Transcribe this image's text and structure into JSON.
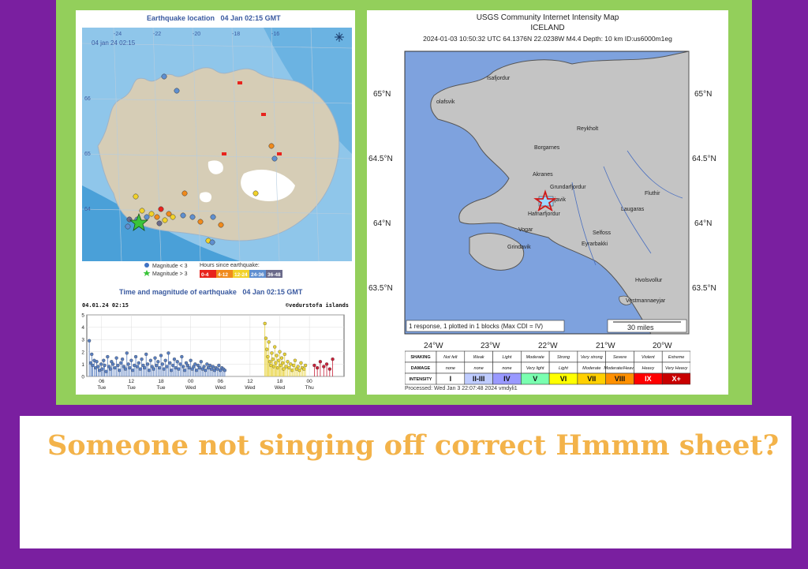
{
  "caption": "Someone not singing off correct Hmmm sheet?",
  "left": {
    "map_title": "Earthquake location",
    "map_time": "04 Jan 02:15 GMT",
    "map_stamp": "04 jan 24 02:15",
    "lon_labels": [
      "-24",
      "-22",
      "-20",
      "-18",
      "-16"
    ],
    "lat_labels": [
      "66",
      "65",
      "64"
    ],
    "legend_mag_lt": "Magnitude < 3",
    "legend_mag_gt": "Magnitude > 3",
    "legend_hours_title": "Hours since earthquake:",
    "hours_bins": [
      {
        "label": "0-4",
        "color": "#e8231d"
      },
      {
        "label": "4-12",
        "color": "#f08a1c"
      },
      {
        "label": "12-24",
        "color": "#f2d22a"
      },
      {
        "label": "24-36",
        "color": "#5f8fd0"
      },
      {
        "label": "36-48",
        "color": "#6a6a8a"
      }
    ],
    "chart_title": "Time and magnitude of earthquake",
    "chart_time": "04 Jan 02:15 GMT",
    "chart_stamp": "04.01.24 02:15",
    "chart_credit": "©vedurstofa islands"
  },
  "chart_data": {
    "type": "scatter",
    "title": "Time and magnitude of earthquake",
    "x_tick_labels": [
      "06 Tue",
      "12 Tue",
      "18 Tue",
      "00 Wed",
      "06 Wed",
      "12 Wed",
      "18 Wed",
      "00 Thu"
    ],
    "y_ticks": [
      0,
      1,
      2,
      3,
      4,
      5
    ],
    "ylim": [
      0,
      5
    ],
    "series": [
      {
        "color": "#5a7fc0",
        "x": [
          0.5,
          0.8,
          1.0,
          1.2,
          1.5,
          1.8,
          2.0,
          2.3,
          2.6,
          2.9,
          3.1,
          3.4,
          3.6,
          3.9,
          4.2,
          4.5,
          4.8,
          5.0,
          5.3,
          5.7,
          6.0,
          6.3,
          6.6,
          6.9,
          7.2,
          7.5,
          7.8,
          8.1,
          8.4,
          8.7,
          9.0,
          9.3,
          9.6,
          9.9,
          10.2,
          10.5,
          10.8,
          11.1,
          11.4,
          11.7,
          12.0,
          12.3,
          12.6,
          12.9,
          13.2,
          13.5,
          13.8,
          14.1,
          14.4,
          14.7,
          15.0,
          15.3,
          15.6,
          15.9,
          16.2,
          16.5,
          16.8,
          17.1,
          17.4,
          17.7,
          18.0,
          18.3,
          18.6,
          18.9,
          19.2,
          19.5,
          19.8,
          20.1,
          20.4,
          20.7,
          21.0,
          21.3,
          21.6,
          21.9,
          22.2,
          22.5,
          22.8,
          23.1,
          23.4,
          23.7,
          24.0,
          24.3,
          24.6,
          24.9,
          25.2,
          25.5,
          25.8,
          26.1,
          26.4,
          26.7,
          27.0,
          27.3,
          27.6,
          27.9
        ],
        "y": [
          2.9,
          1.1,
          1.8,
          0.9,
          1.3,
          0.7,
          1.2,
          0.8,
          0.5,
          1.0,
          0.6,
          1.3,
          0.9,
          0.4,
          1.6,
          0.8,
          0.6,
          1.2,
          1.0,
          0.7,
          1.5,
          0.9,
          0.5,
          1.1,
          1.4,
          0.8,
          0.6,
          1.9,
          1.0,
          0.7,
          1.3,
          0.5,
          0.9,
          1.6,
          0.8,
          1.1,
          0.6,
          1.4,
          0.9,
          0.7,
          1.8,
          1.0,
          0.5,
          1.3,
          0.8,
          0.6,
          1.5,
          0.9,
          1.2,
          0.7,
          1.7,
          1.0,
          0.6,
          1.3,
          0.8,
          1.9,
          1.1,
          0.5,
          0.9,
          1.4,
          0.7,
          1.2,
          0.6,
          1.0,
          1.6,
          0.8,
          0.5,
          1.1,
          0.9,
          0.7,
          1.3,
          0.6,
          0.8,
          1.0,
          0.5,
          0.9,
          0.7,
          1.2,
          0.6,
          0.8,
          0.5,
          1.0,
          0.7,
          0.9,
          0.6,
          0.8,
          0.5,
          0.7,
          0.6,
          0.9,
          0.5,
          0.7,
          0.6,
          0.5
        ]
      },
      {
        "color": "#e8d23a",
        "x": [
          36.0,
          36.2,
          36.4,
          36.6,
          36.8,
          37.0,
          37.2,
          37.4,
          37.6,
          37.8,
          38.0,
          38.2,
          38.4,
          38.6,
          38.8,
          39.0,
          39.2,
          39.4,
          39.6,
          39.8,
          40.0,
          40.3,
          40.6,
          40.9,
          41.2,
          41.5,
          41.8,
          42.1,
          42.4,
          42.7,
          43.0,
          43.3,
          43.6,
          43.9,
          44.2
        ],
        "y": [
          4.3,
          3.1,
          2.2,
          1.6,
          2.8,
          1.2,
          0.9,
          1.9,
          1.4,
          0.8,
          2.4,
          1.1,
          1.7,
          0.7,
          1.3,
          2.0,
          0.9,
          1.5,
          1.1,
          0.6,
          1.8,
          0.8,
          1.2,
          0.7,
          1.0,
          0.5,
          0.9,
          1.3,
          0.6,
          0.8,
          0.5,
          1.1,
          0.7,
          0.6,
          0.9
        ]
      },
      {
        "color": "#c8223a",
        "x": [
          46.0,
          46.6,
          47.2,
          47.9,
          48.5,
          49.1,
          49.7
        ],
        "y": [
          0.9,
          0.7,
          1.2,
          0.8,
          1.0,
          0.6,
          1.4
        ]
      }
    ]
  },
  "right": {
    "title": "USGS Community Internet Intensity Map",
    "region": "ICELAND",
    "meta": "2024-01-03 10:50:32 UTC 64.1376N 22.0238W M4.4 Depth: 10 km ID:us6000m1eg",
    "lat_labels": [
      "65°N",
      "64.5°N",
      "64°N",
      "63.5°N"
    ],
    "lon_labels": [
      "24°W",
      "23°W",
      "22°W",
      "21°W",
      "20°W"
    ],
    "places": [
      "Isafjordur",
      "olafsvik",
      "Reykholt",
      "Borgarnes",
      "Akranes",
      "Grundarfjordur",
      "Reykjavik",
      "Hafnarfjordur",
      "Vogar",
      "Grindavik",
      "Selfoss",
      "Eyrarbakki",
      "Laugaras",
      "Fluthir",
      "Hvolsvollur",
      "Vestmannaeyjar"
    ],
    "response_note": "1 response, 1 plotted in 1 blocks (Max CDI = IV)",
    "scale_label": "30 miles",
    "row_labels": [
      "SHAKING",
      "DAMAGE",
      "INTENSITY"
    ],
    "table": [
      {
        "shaking": "Not felt",
        "damage": "none",
        "intensity": "I",
        "color": "#ffffff"
      },
      {
        "shaking": "Weak",
        "damage": "none",
        "intensity": "II-III",
        "color": "#bfccff"
      },
      {
        "shaking": "Light",
        "damage": "none",
        "intensity": "IV",
        "color": "#9999ff"
      },
      {
        "shaking": "Moderate",
        "damage": "Very light",
        "intensity": "V",
        "color": "#7affb0"
      },
      {
        "shaking": "Strong",
        "damage": "Light",
        "intensity": "VI",
        "color": "#ffff00"
      },
      {
        "shaking": "Very strong",
        "damage": "Moderate",
        "intensity": "VII",
        "color": "#ffd000"
      },
      {
        "shaking": "Severe",
        "damage": "Moderate/Heavy",
        "intensity": "VIII",
        "color": "#ff9000"
      },
      {
        "shaking": "Violent",
        "damage": "Heavy",
        "intensity": "IX",
        "color": "#ff0000"
      },
      {
        "shaking": "Extreme",
        "damage": "Very Heavy",
        "intensity": "X+",
        "color": "#c80000"
      }
    ],
    "processed": "Processed: Wed Jan 3 22:07:48 2024 vmdyli1"
  }
}
